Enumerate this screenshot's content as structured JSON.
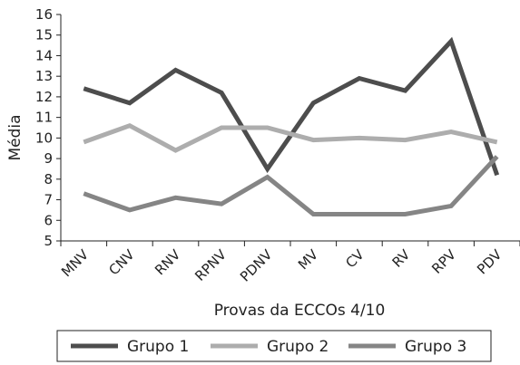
{
  "chart_data": {
    "type": "line",
    "title": "",
    "xlabel": "Provas da ECCOs 4/10",
    "ylabel": "Média",
    "categories": [
      "MNV",
      "CNV",
      "RNV",
      "RPNV",
      "PDNV",
      "MV",
      "CV",
      "RV",
      "RPV",
      "PDV"
    ],
    "ylim": [
      5,
      16
    ],
    "yticks": [
      "5",
      "6",
      "7",
      "8",
      "9",
      "10",
      "11",
      "12",
      "13",
      "14",
      "15",
      "16"
    ],
    "grid": false,
    "legend_position": "bottom",
    "series": [
      {
        "name": "Grupo 1",
        "color": "#4d4d4d",
        "values": [
          12.4,
          11.7,
          13.3,
          12.2,
          8.5,
          11.7,
          12.9,
          12.3,
          14.7,
          8.2
        ]
      },
      {
        "name": "Grupo 2",
        "color": "#adadad",
        "values": [
          9.8,
          10.6,
          9.4,
          10.5,
          10.5,
          9.9,
          10.0,
          9.9,
          10.3,
          9.8
        ]
      },
      {
        "name": "Grupo 3",
        "color": "#858585",
        "values": [
          7.3,
          6.5,
          7.1,
          6.8,
          8.1,
          6.3,
          6.3,
          6.3,
          6.7,
          9.1
        ]
      }
    ]
  }
}
